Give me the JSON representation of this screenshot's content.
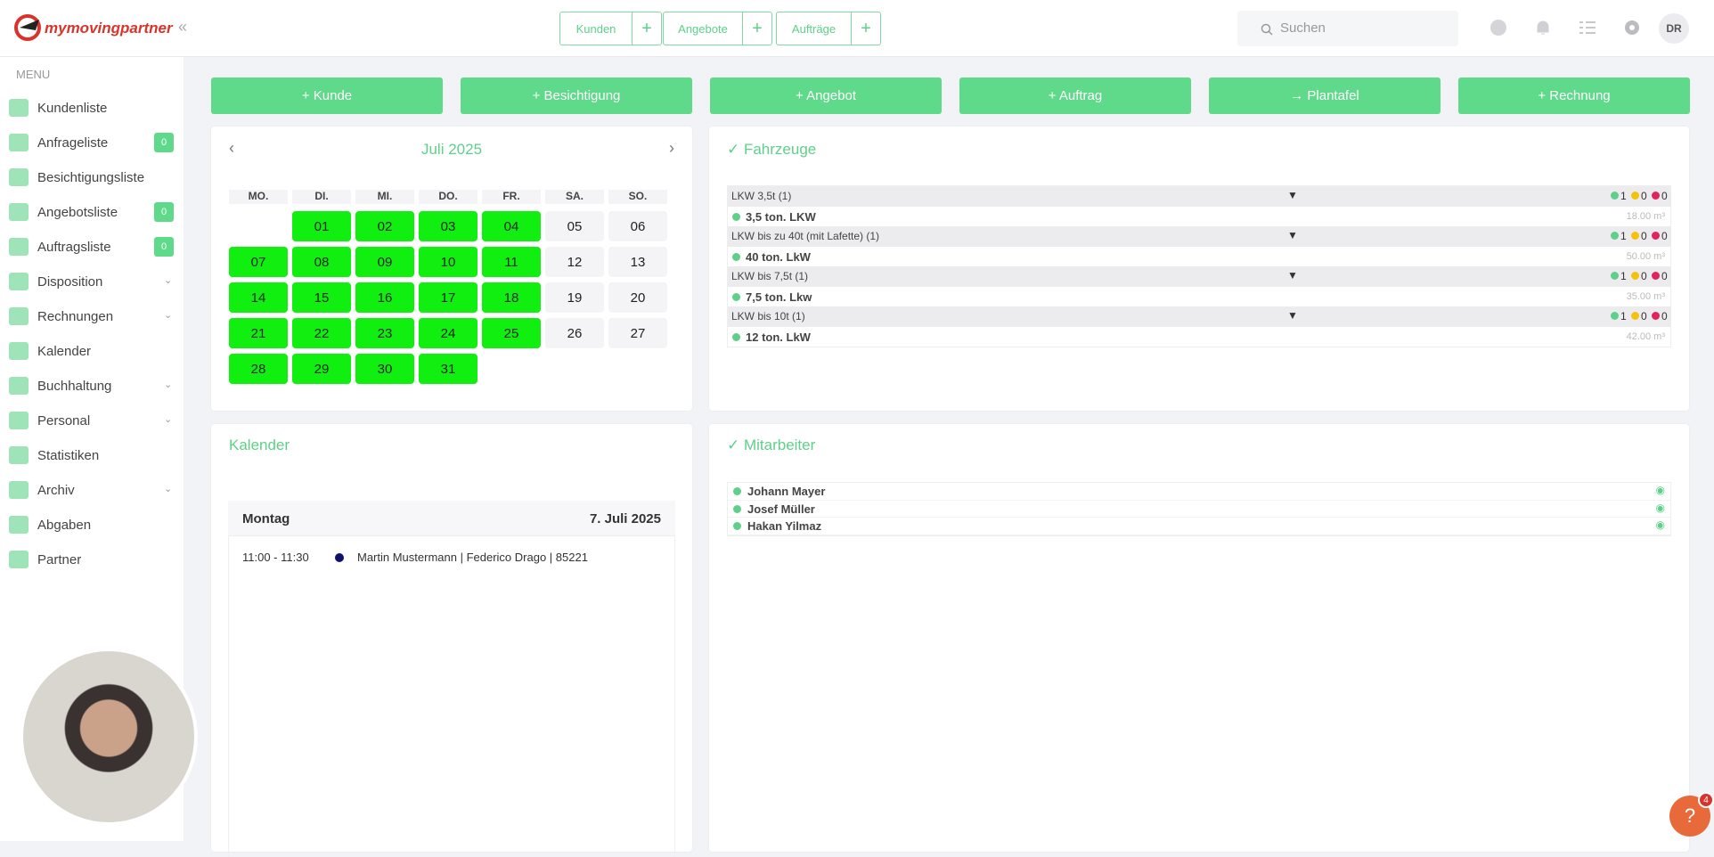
{
  "header": {
    "logo": "mymovingpartner",
    "tabs": [
      "Kunden",
      "Angebote",
      "Aufträge"
    ],
    "search_placeholder": "Suchen",
    "user_initials": "DR"
  },
  "sidebar": {
    "menu_title": "MENU",
    "items": [
      {
        "label": "Kundenliste"
      },
      {
        "label": "Anfrageliste",
        "badge": "0"
      },
      {
        "label": "Besichtigungsliste"
      },
      {
        "label": "Angebotsliste",
        "badge": "0"
      },
      {
        "label": "Auftragsliste",
        "badge": "0"
      },
      {
        "label": "Disposition",
        "expandable": true
      },
      {
        "label": "Rechnungen",
        "expandable": true
      },
      {
        "label": "Kalender"
      },
      {
        "label": "Buchhaltung",
        "expandable": true
      },
      {
        "label": "Personal",
        "expandable": true
      },
      {
        "label": "Statistiken"
      },
      {
        "label": "Archiv",
        "expandable": true
      },
      {
        "label": "Abgaben"
      },
      {
        "label": "Partner"
      }
    ]
  },
  "actions": [
    "+ Kunde",
    "+ Besichtigung",
    "+ Angebot",
    "+ Auftrag",
    "→ Plantafel",
    "+ Rechnung"
  ],
  "calendar": {
    "month": "Juli 2025",
    "weekdays": [
      "MO.",
      "DI.",
      "MI.",
      "DO.",
      "FR.",
      "SA.",
      "SO."
    ],
    "weeks": [
      [
        null,
        {
          "day": "01",
          "busy": true
        },
        {
          "day": "02",
          "busy": true
        },
        {
          "day": "03",
          "busy": true
        },
        {
          "day": "04",
          "busy": true
        },
        {
          "day": "05",
          "busy": false
        },
        {
          "day": "06",
          "busy": false
        }
      ],
      [
        {
          "day": "07",
          "busy": true
        },
        {
          "day": "08",
          "busy": true
        },
        {
          "day": "09",
          "busy": true
        },
        {
          "day": "10",
          "busy": true
        },
        {
          "day": "11",
          "busy": true
        },
        {
          "day": "12",
          "busy": false
        },
        {
          "day": "13",
          "busy": false
        }
      ],
      [
        {
          "day": "14",
          "busy": true
        },
        {
          "day": "15",
          "busy": true
        },
        {
          "day": "16",
          "busy": true
        },
        {
          "day": "17",
          "busy": true
        },
        {
          "day": "18",
          "busy": true
        },
        {
          "day": "19",
          "busy": false
        },
        {
          "day": "20",
          "busy": false
        }
      ],
      [
        {
          "day": "21",
          "busy": true
        },
        {
          "day": "22",
          "busy": true
        },
        {
          "day": "23",
          "busy": true
        },
        {
          "day": "24",
          "busy": true
        },
        {
          "day": "25",
          "busy": true
        },
        {
          "day": "26",
          "busy": false
        },
        {
          "day": "27",
          "busy": false
        }
      ],
      [
        {
          "day": "28",
          "busy": true
        },
        {
          "day": "29",
          "busy": true
        },
        {
          "day": "30",
          "busy": true
        },
        {
          "day": "31",
          "busy": true
        }
      ]
    ]
  },
  "vehicles": {
    "title": "Fahrzeuge",
    "groups": [
      {
        "name": "LKW 3,5t (1)",
        "counts": [
          "1",
          "0",
          "0"
        ],
        "vehicle": "3,5 ton. LKW",
        "volume": "18.00 m³"
      },
      {
        "name": "LKW bis zu 40t (mit Lafette) (1)",
        "counts": [
          "1",
          "0",
          "0"
        ],
        "vehicle": "40 ton. LkW",
        "volume": "50.00 m³"
      },
      {
        "name": "LKW bis 7,5t (1)",
        "counts": [
          "1",
          "0",
          "0"
        ],
        "vehicle": "7,5 ton. Lkw",
        "volume": "35.00 m³"
      },
      {
        "name": "LKW bis 10t (1)",
        "counts": [
          "1",
          "0",
          "0"
        ],
        "vehicle": "12 ton. LkW",
        "volume": "42.00 m³"
      }
    ]
  },
  "agenda": {
    "title": "Kalender",
    "day": "Montag",
    "date": "7. Juli 2025",
    "events": [
      {
        "time": "11:00 - 11:30",
        "text": "Martin Mustermann | Federico Drago | 85221"
      }
    ]
  },
  "employees": {
    "title": "Mitarbeiter",
    "names": [
      "Johann Mayer",
      "Josef Müller",
      "Hakan Yilmaz"
    ]
  },
  "help": {
    "label": "?",
    "badge": "4"
  }
}
